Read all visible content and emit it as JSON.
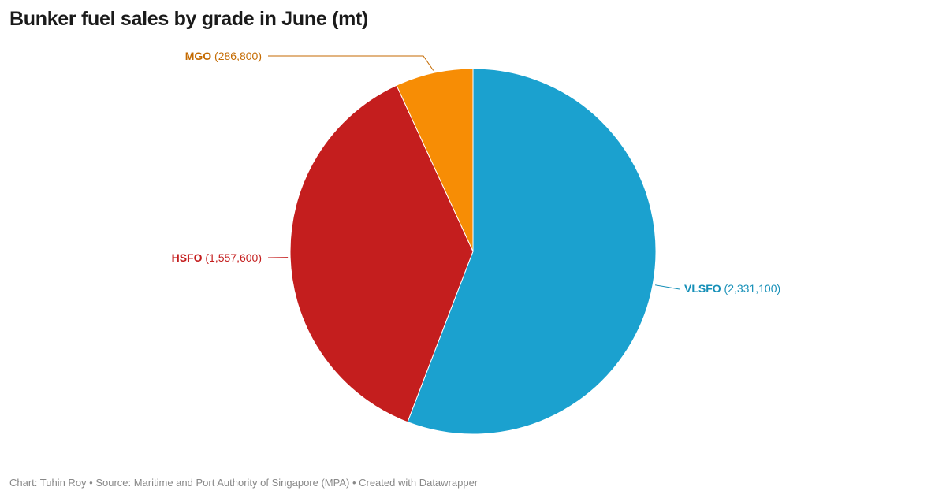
{
  "title": "Bunker fuel sales by grade in June (mt)",
  "footer": "Chart: Tuhin Roy • Source: Maritime and Port Authority of Singapore (MPA) • Created with Datawrapper",
  "chart_data": {
    "type": "pie",
    "title": "Bunker fuel sales by grade in June (mt)",
    "slices": [
      {
        "name": "VLSFO",
        "value": 2331100,
        "display": "(2,331,100)",
        "color": "#1ba1cf",
        "label_color": "#1790b8"
      },
      {
        "name": "HSFO",
        "value": 1557600,
        "display": "(1,557,600)",
        "color": "#c41e1e",
        "label_color": "#c41e1e"
      },
      {
        "name": "MGO",
        "value": 286800,
        "display": "(286,800)",
        "color": "#f78d05",
        "label_color": "#c46a00"
      }
    ],
    "legend": "none",
    "start": "12 o'clock",
    "direction": "clockwise"
  }
}
